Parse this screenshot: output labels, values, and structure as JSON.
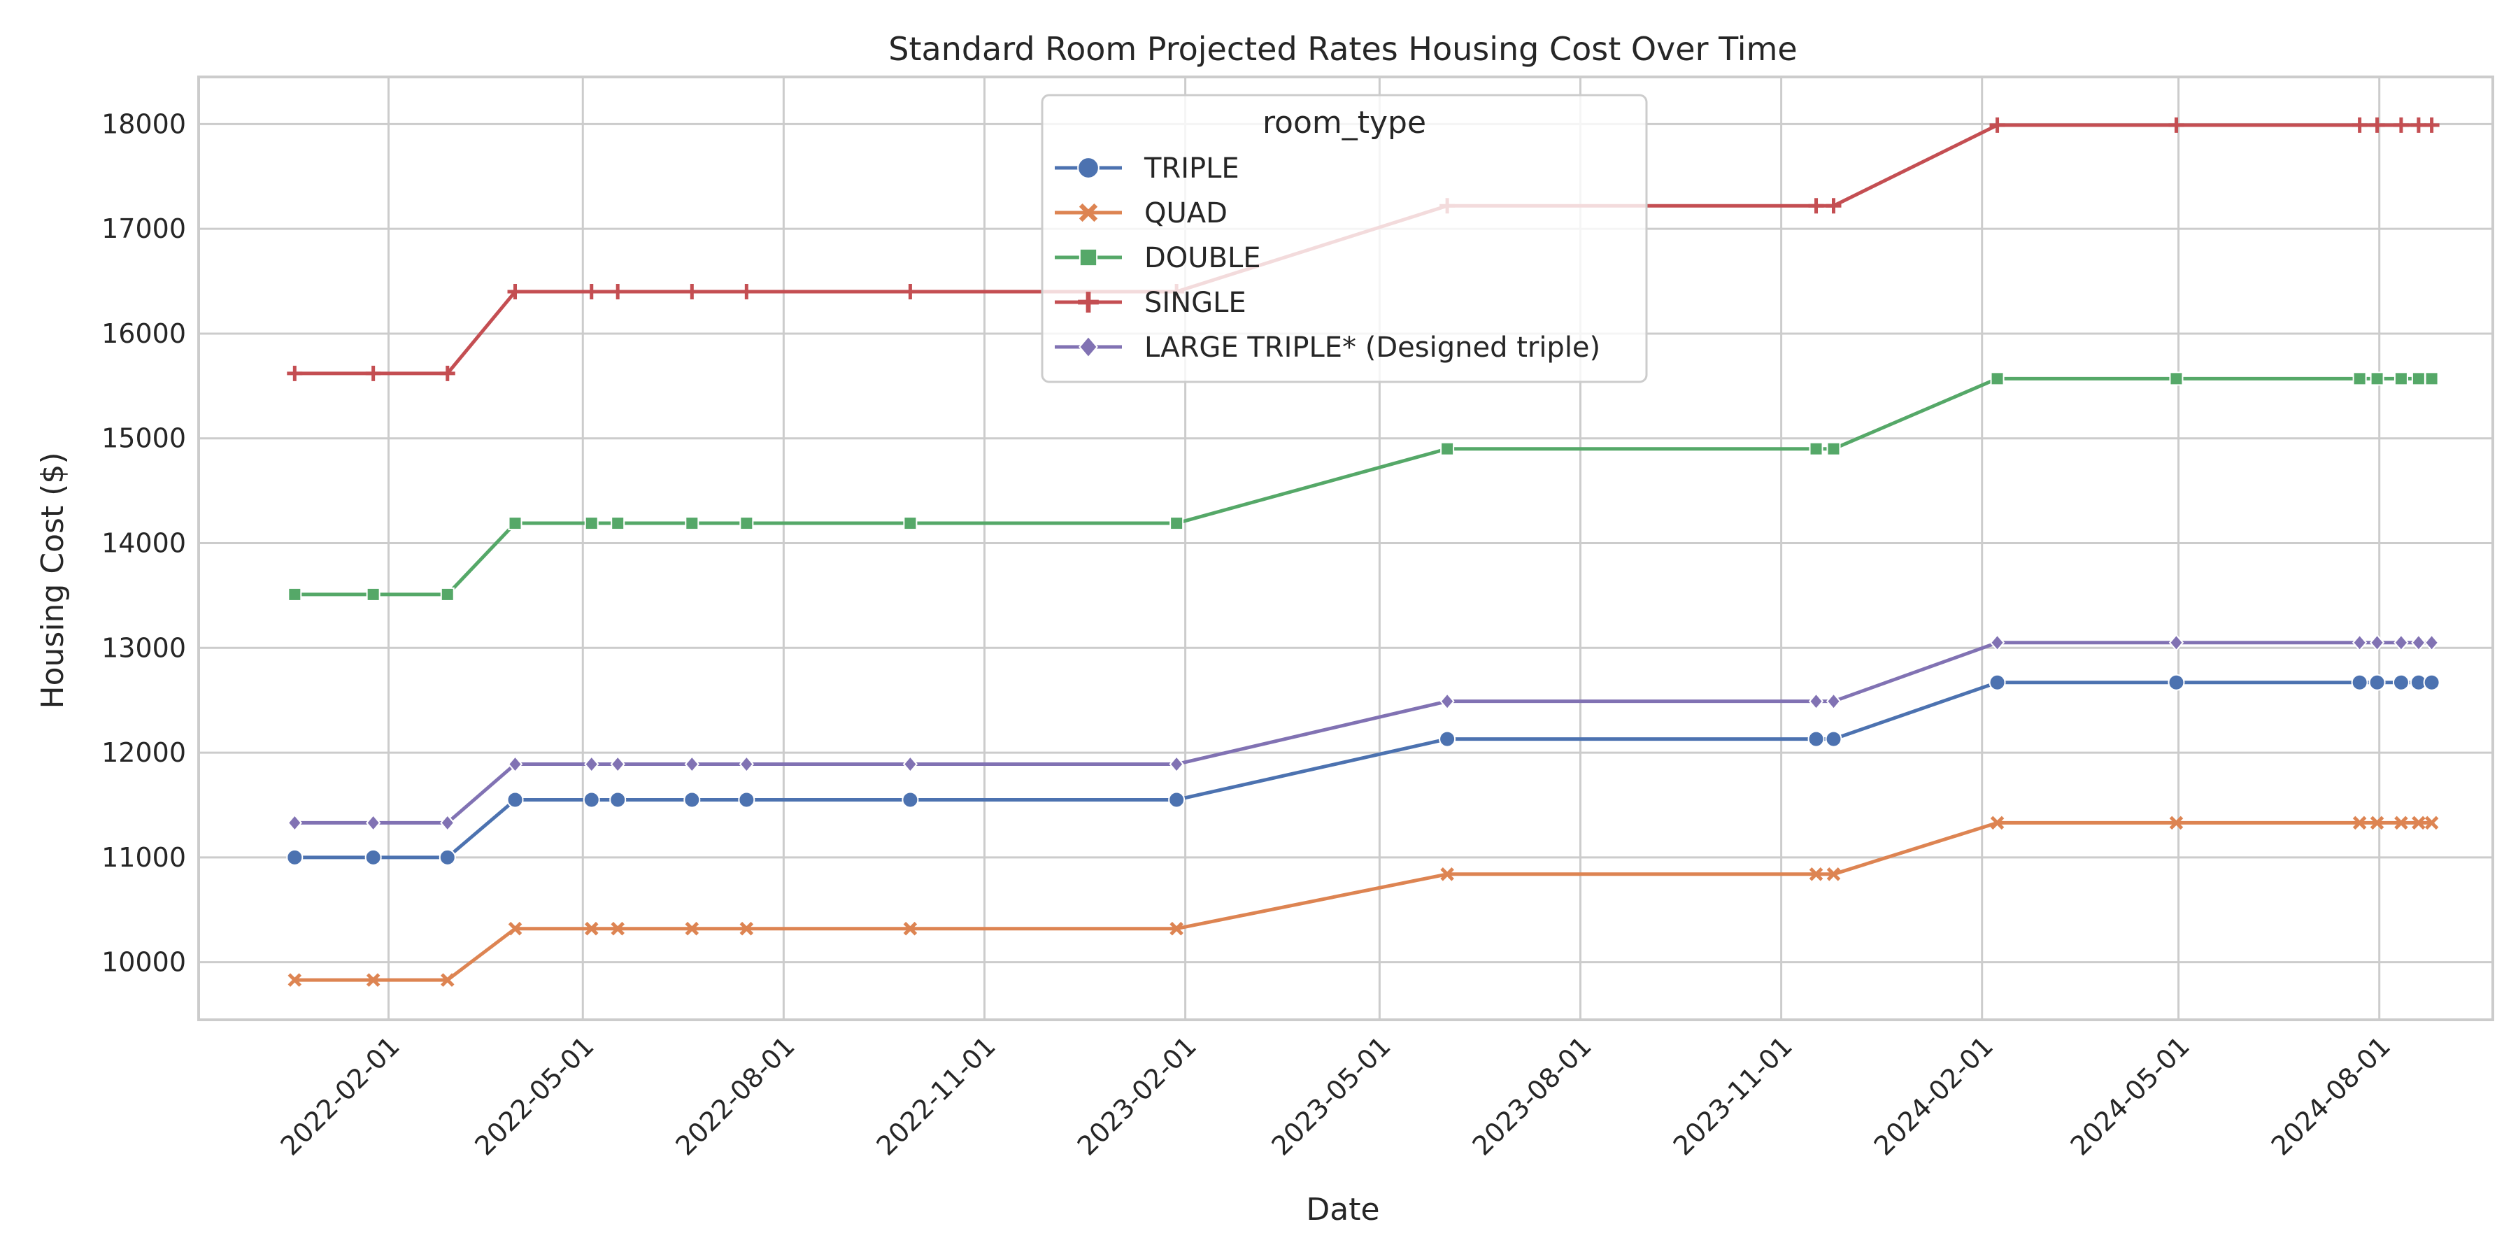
{
  "chart_data": {
    "type": "line",
    "title": "Standard Room Projected Rates Housing Cost Over Time",
    "xlabel": "Date",
    "ylabel": "Housing Cost ($)",
    "ylim": [
      9450,
      18450
    ],
    "xlim": [
      "2021-11-06",
      "2024-09-22"
    ],
    "yticks": [
      10000,
      11000,
      12000,
      13000,
      14000,
      15000,
      16000,
      17000,
      18000
    ],
    "xticks": [
      "2022-02-01",
      "2022-05-01",
      "2022-08-01",
      "2022-11-01",
      "2023-02-01",
      "2023-05-01",
      "2023-08-01",
      "2023-11-01",
      "2024-02-01",
      "2024-05-01",
      "2024-08-01"
    ],
    "grid": true,
    "legend": {
      "title": "room_type",
      "placement": "top-center"
    },
    "x": [
      "2021-12-20",
      "2022-01-25",
      "2022-02-28",
      "2022-03-31",
      "2022-05-05",
      "2022-05-17",
      "2022-06-20",
      "2022-07-15",
      "2022-09-28",
      "2023-01-28",
      "2023-06-01",
      "2023-11-17",
      "2023-11-25",
      "2024-02-08",
      "2024-04-30",
      "2024-07-23",
      "2024-07-31",
      "2024-08-11",
      "2024-08-19",
      "2024-08-25"
    ],
    "series": [
      {
        "name": "TRIPLE",
        "color": "#4c72b0",
        "marker": "circle",
        "values": [
          11000,
          11000,
          11000,
          11550,
          11550,
          11550,
          11550,
          11550,
          11550,
          11550,
          12130,
          12130,
          12130,
          12670,
          12670,
          12670,
          12670,
          12670,
          12670,
          12670
        ]
      },
      {
        "name": "QUAD",
        "color": "#dd8452",
        "marker": "x",
        "values": [
          9830,
          9830,
          9830,
          10320,
          10320,
          10320,
          10320,
          10320,
          10320,
          10320,
          10840,
          10840,
          10840,
          11330,
          11330,
          11330,
          11330,
          11330,
          11330,
          11330
        ]
      },
      {
        "name": "DOUBLE",
        "color": "#55a868",
        "marker": "square",
        "values": [
          13510,
          13510,
          13510,
          14190,
          14190,
          14190,
          14190,
          14190,
          14190,
          14190,
          14900,
          14900,
          14900,
          15570,
          15570,
          15570,
          15570,
          15570,
          15570,
          15570
        ]
      },
      {
        "name": "SINGLE",
        "color": "#c44e52",
        "marker": "plus",
        "values": [
          15620,
          15620,
          15620,
          16400,
          16400,
          16400,
          16400,
          16400,
          16400,
          16400,
          17220,
          17220,
          17220,
          17990,
          17990,
          17990,
          17990,
          17990,
          17990,
          17990
        ]
      },
      {
        "name": "LARGE TRIPLE* (Designed triple)",
        "color": "#8172b3",
        "marker": "diamond",
        "values": [
          11330,
          11330,
          11330,
          11890,
          11890,
          11890,
          11890,
          11890,
          11890,
          11890,
          12490,
          12490,
          12490,
          13050,
          13050,
          13050,
          13050,
          13050,
          13050,
          13050
        ]
      }
    ]
  }
}
